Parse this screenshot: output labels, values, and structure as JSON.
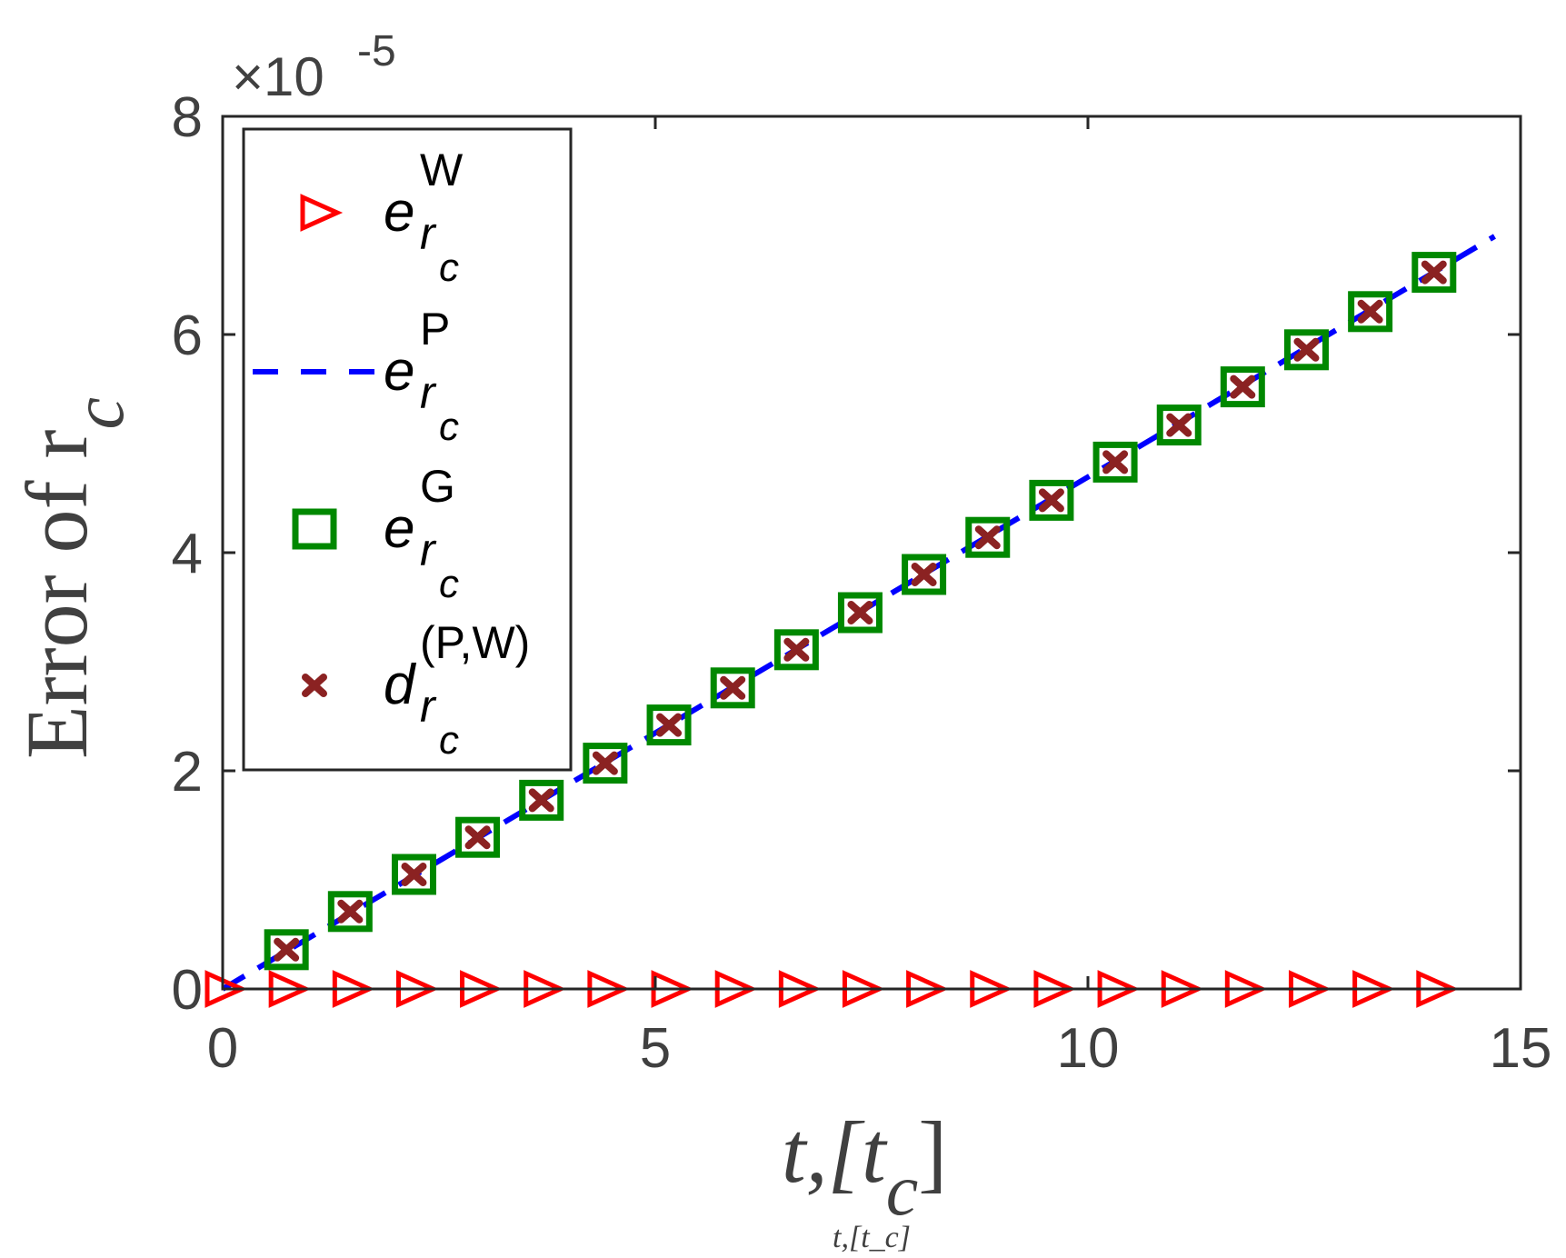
{
  "chart_data": {
    "type": "line",
    "title": "",
    "xlabel": "t,[t_c]",
    "xlabel_parts": {
      "main": "t,[t",
      "sub": "c",
      "close": "]"
    },
    "ylabel": "Error of r_c",
    "ylabel_parts": {
      "main": "Error of r",
      "sub": "c"
    },
    "y_multiplier": {
      "base": "×10",
      "exponent": "-5"
    },
    "xlim": [
      0,
      15
    ],
    "ylim": [
      0,
      8
    ],
    "xticks": [
      "0",
      "5",
      "10",
      "15"
    ],
    "yticks": [
      "0",
      "2",
      "4",
      "6",
      "8"
    ],
    "grid": false,
    "legend_placement": "top-left",
    "series": [
      {
        "name": "e_rc^W",
        "legend": {
          "base": "e",
          "sup": "W",
          "sub": "r",
          "subsub": "c"
        },
        "style": "triangle-right markers",
        "color": "#ff0000",
        "x": [
          0,
          0.737,
          1.474,
          2.211,
          2.947,
          3.684,
          4.421,
          5.158,
          5.895,
          6.632,
          7.368,
          8.105,
          8.842,
          9.579,
          10.316,
          11.053,
          11.789,
          12.526,
          13.263,
          14.0
        ],
        "y": [
          0,
          0,
          0,
          0,
          0,
          0,
          0,
          0,
          0,
          0,
          0,
          0,
          0,
          0,
          0,
          0,
          0,
          0,
          0,
          0
        ]
      },
      {
        "name": "e_rc^P",
        "legend": {
          "base": "e",
          "sup": "P",
          "sub": "r",
          "subsub": "c"
        },
        "style": "dashed line",
        "color": "#0000ff",
        "x": [
          0,
          14.7
        ],
        "y": [
          0,
          6.9
        ]
      },
      {
        "name": "e_rc^G",
        "legend": {
          "base": "e",
          "sup": "G",
          "sub": "r",
          "subsub": "c"
        },
        "style": "square markers",
        "color": "#008800",
        "x": [
          0.737,
          1.474,
          2.211,
          2.947,
          3.684,
          4.421,
          5.158,
          5.895,
          6.632,
          7.368,
          8.105,
          8.842,
          9.579,
          10.316,
          11.053,
          11.789,
          12.526,
          13.263,
          14.0
        ],
        "y": [
          0.36,
          0.71,
          1.05,
          1.39,
          1.73,
          2.07,
          2.42,
          2.76,
          3.11,
          3.45,
          3.8,
          4.14,
          4.48,
          4.83,
          5.17,
          5.52,
          5.86,
          6.21,
          6.57
        ]
      },
      {
        "name": "d_rc^(P,W)",
        "legend": {
          "base": "d",
          "sup": "(P,W)",
          "sub": "r",
          "subsub": "c"
        },
        "style": "x markers",
        "color": "#8b2222",
        "x": [
          0.737,
          1.474,
          2.211,
          2.947,
          3.684,
          4.421,
          5.158,
          5.895,
          6.632,
          7.368,
          8.105,
          8.842,
          9.579,
          10.316,
          11.053,
          11.789,
          12.526,
          13.263,
          14.0
        ],
        "y": [
          0.36,
          0.71,
          1.05,
          1.39,
          1.73,
          2.07,
          2.42,
          2.76,
          3.11,
          3.45,
          3.8,
          4.14,
          4.48,
          4.83,
          5.17,
          5.52,
          5.86,
          6.21,
          6.57
        ]
      }
    ]
  }
}
